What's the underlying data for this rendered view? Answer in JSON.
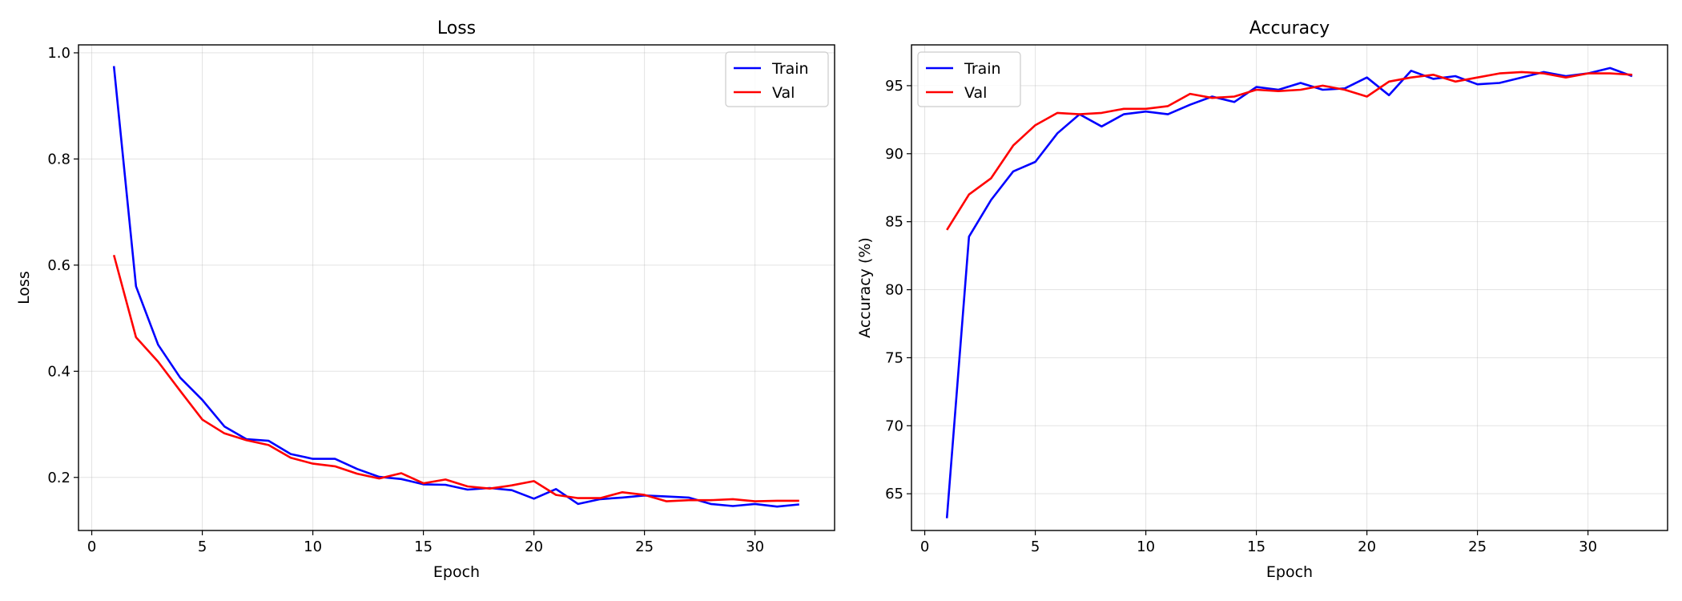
{
  "chart_data": [
    {
      "type": "line",
      "title": "Loss",
      "xlabel": "Epoch",
      "ylabel": "Loss",
      "xlim": [
        -0.6,
        33.6
      ],
      "ylim": [
        0.1,
        1.015
      ],
      "xticks": [
        0,
        5,
        10,
        15,
        20,
        25,
        30
      ],
      "yticks": [
        0.2,
        0.4,
        0.6,
        0.8,
        1.0
      ],
      "ytick_labels": [
        "0.2",
        "0.4",
        "0.6",
        "0.8",
        "1.0"
      ],
      "grid": true,
      "legend_position": "top-right",
      "x": [
        1,
        2,
        3,
        4,
        5,
        6,
        7,
        8,
        9,
        10,
        11,
        12,
        13,
        14,
        15,
        16,
        17,
        18,
        19,
        20,
        21,
        22,
        23,
        24,
        25,
        26,
        27,
        28,
        29,
        30,
        31,
        32
      ],
      "series": [
        {
          "name": "Train",
          "color": "#0000ff",
          "values": [
            0.975,
            0.56,
            0.45,
            0.388,
            0.346,
            0.296,
            0.272,
            0.269,
            0.244,
            0.235,
            0.235,
            0.216,
            0.201,
            0.197,
            0.187,
            0.186,
            0.177,
            0.18,
            0.176,
            0.16,
            0.178,
            0.15,
            0.159,
            0.162,
            0.166,
            0.164,
            0.162,
            0.15,
            0.146,
            0.15,
            0.145,
            0.149
          ]
        },
        {
          "name": "Val",
          "color": "#ff0000",
          "values": [
            0.619,
            0.464,
            0.418,
            0.363,
            0.309,
            0.283,
            0.27,
            0.261,
            0.237,
            0.226,
            0.221,
            0.207,
            0.198,
            0.208,
            0.189,
            0.196,
            0.183,
            0.179,
            0.185,
            0.193,
            0.167,
            0.161,
            0.161,
            0.172,
            0.167,
            0.155,
            0.157,
            0.157,
            0.159,
            0.155,
            0.156,
            0.156
          ]
        }
      ]
    },
    {
      "type": "line",
      "title": "Accuracy",
      "xlabel": "Epoch",
      "ylabel": "Accuracy (%)",
      "xlim": [
        -0.6,
        33.6
      ],
      "ylim": [
        62.3,
        98.0
      ],
      "xticks": [
        0,
        5,
        10,
        15,
        20,
        25,
        30
      ],
      "yticks": [
        65,
        70,
        75,
        80,
        85,
        90,
        95
      ],
      "ytick_labels": [
        "65",
        "70",
        "75",
        "80",
        "85",
        "90",
        "95"
      ],
      "grid": true,
      "legend_position": "top-left",
      "x": [
        1,
        2,
        3,
        4,
        5,
        6,
        7,
        8,
        9,
        10,
        11,
        12,
        13,
        14,
        15,
        16,
        17,
        18,
        19,
        20,
        21,
        22,
        23,
        24,
        25,
        26,
        27,
        28,
        29,
        30,
        31,
        32
      ],
      "series": [
        {
          "name": "Train",
          "color": "#0000ff",
          "values": [
            63.2,
            83.9,
            86.6,
            88.7,
            89.4,
            91.5,
            92.9,
            92.0,
            92.9,
            93.1,
            92.9,
            93.6,
            94.2,
            93.8,
            94.9,
            94.7,
            95.2,
            94.7,
            94.8,
            95.6,
            94.3,
            96.1,
            95.5,
            95.7,
            95.1,
            95.2,
            95.6,
            96.0,
            95.7,
            95.9,
            96.3,
            95.7
          ]
        },
        {
          "name": "Val",
          "color": "#ff0000",
          "values": [
            84.4,
            87.0,
            88.2,
            90.6,
            92.1,
            93.0,
            92.9,
            93.0,
            93.3,
            93.3,
            93.5,
            94.4,
            94.1,
            94.2,
            94.7,
            94.6,
            94.7,
            95.0,
            94.7,
            94.2,
            95.3,
            95.6,
            95.8,
            95.3,
            95.6,
            95.9,
            96.0,
            95.9,
            95.6,
            95.9,
            95.9,
            95.8
          ]
        }
      ]
    }
  ]
}
